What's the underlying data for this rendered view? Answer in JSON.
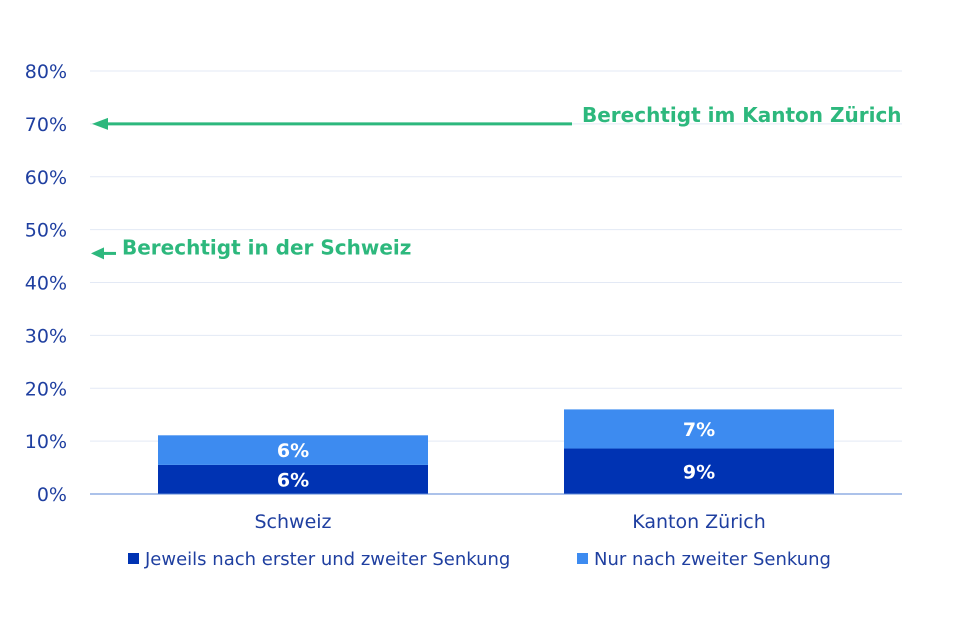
{
  "chart_data": {
    "type": "bar",
    "stacked": true,
    "categories": [
      "Schweiz",
      "Kanton Zürich"
    ],
    "series": [
      {
        "name": "Jeweils nach erster und zweiter Senkung",
        "values": [
          5.5,
          8.6
        ],
        "labels": [
          "6%",
          "9%"
        ],
        "color": "#0033b3"
      },
      {
        "name": "Nur nach zweiter Senkung",
        "values": [
          5.6,
          7.4
        ],
        "labels": [
          "6%",
          "7%"
        ],
        "color": "#3d8bf0"
      }
    ],
    "ylim": [
      0,
      80
    ],
    "yticks": [
      0,
      10,
      20,
      30,
      40,
      50,
      60,
      70,
      80
    ],
    "ytick_labels": [
      "0%",
      "10%",
      "20%",
      "30%",
      "40%",
      "50%",
      "60%",
      "70%",
      "80%"
    ],
    "grid": true,
    "legend_position": "bottom",
    "annotations": [
      {
        "text": "Berechtigt im Kanton Zürich",
        "y": 70,
        "color": "#2db87d"
      },
      {
        "text": "Berechtigt in der Schweiz",
        "y": 45.5,
        "color": "#2db87d"
      }
    ],
    "colors": {
      "axis": "#1f3fa0",
      "grid": "#e3e9f5"
    }
  }
}
